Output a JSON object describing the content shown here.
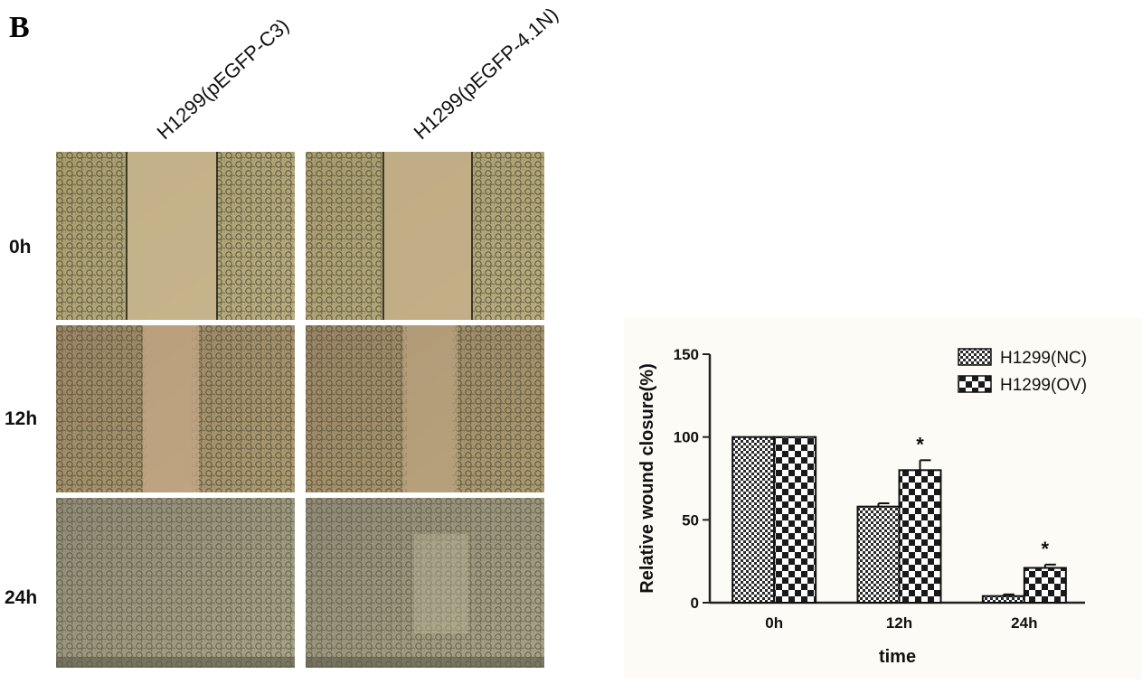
{
  "figure": {
    "panel_letter": "B",
    "column_labels": [
      "H1299(pEGFP-C3)",
      "H1299(pEGFP-4.1N)"
    ],
    "row_labels": [
      "0h",
      "12h",
      "24h"
    ]
  },
  "chart_data": {
    "type": "bar",
    "categories": [
      "0h",
      "12h",
      "24h"
    ],
    "series": [
      {
        "name": "H1299(NC)",
        "values": [
          100,
          58,
          4
        ],
        "errors": [
          0,
          2,
          1
        ],
        "pattern": "fine-checker"
      },
      {
        "name": "H1299(OV)",
        "values": [
          100,
          80,
          21
        ],
        "errors": [
          0,
          6,
          2
        ],
        "pattern": "coarse-checker"
      }
    ],
    "significance": [
      "",
      "*",
      "*"
    ],
    "xlabel": "time",
    "ylabel": "Relative wound closure(%)",
    "ylim": [
      0,
      150
    ],
    "yticks": [
      0,
      50,
      100,
      150
    ],
    "grid": false,
    "legend_position": "top-right",
    "colors": {
      "fill": "#2b2b2b",
      "background": "#fdfbf5"
    }
  }
}
